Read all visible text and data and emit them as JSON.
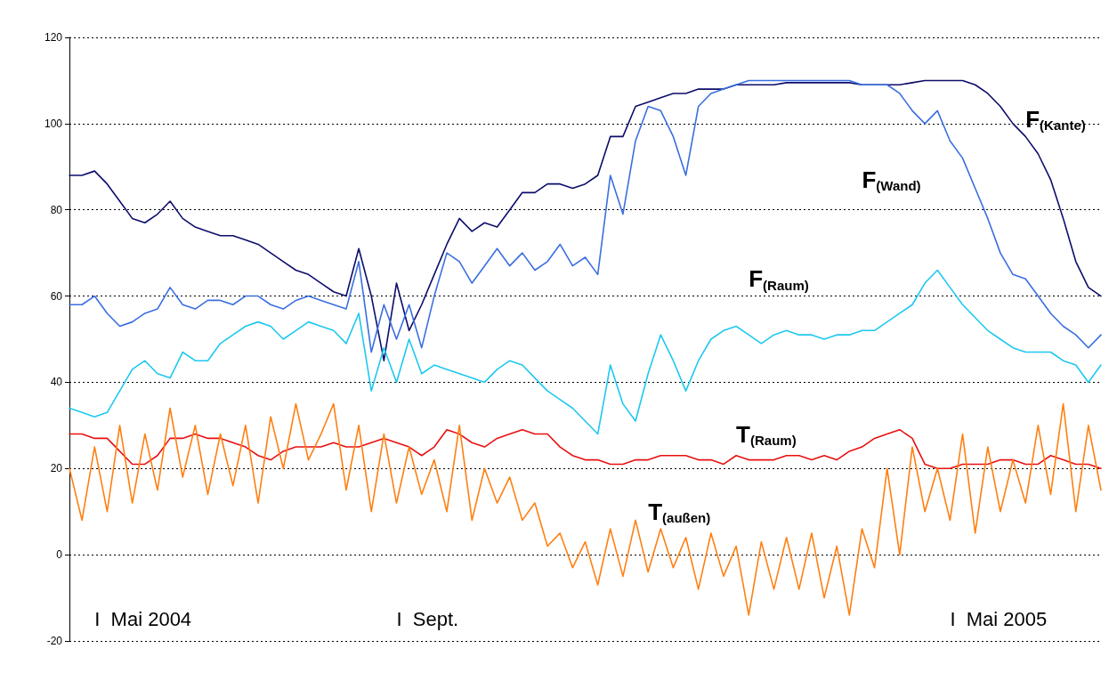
{
  "chart_data": {
    "type": "line",
    "marker": "none",
    "line_style": "solid",
    "legend": false,
    "grid": "y",
    "tick_labels": "y",
    "categories": [
      null,
      null,
      null,
      null,
      null,
      null,
      null,
      null,
      null,
      null,
      null,
      null,
      null,
      null,
      null,
      null,
      null,
      null,
      null,
      null,
      null,
      null,
      null,
      null,
      null,
      null,
      null,
      null,
      null,
      null,
      null,
      null,
      null,
      null,
      null,
      null,
      null,
      null,
      null,
      null,
      null,
      null,
      null,
      null,
      null,
      null,
      null,
      null,
      null,
      null,
      null,
      null,
      null,
      null,
      null,
      null,
      null,
      null,
      null,
      null,
      null,
      null,
      null,
      null,
      null,
      null,
      null,
      null,
      null,
      null,
      null,
      null,
      null,
      null,
      null,
      null,
      null,
      null,
      null,
      null,
      null,
      null,
      null
    ],
    "ylim": [
      -20,
      120
    ],
    "yticks": [
      -20,
      0,
      20,
      40,
      60,
      80,
      100,
      120
    ],
    "annotations": [
      "I  Mai 2004",
      "I  Sept.",
      "I  Mai 2005"
    ],
    "series": [
      {
        "name": "F$_{(Kante)}$",
        "color": "#0d0d6b",
        "values": [
          88,
          88,
          89,
          86,
          82,
          78,
          77,
          79,
          82,
          78,
          76,
          75,
          74,
          74,
          73,
          72,
          70,
          68,
          66,
          65,
          63,
          61,
          60,
          71,
          60,
          45,
          63,
          52,
          58,
          65,
          72,
          78,
          75,
          77,
          76,
          80,
          84,
          84,
          86,
          86,
          85,
          86,
          88,
          97,
          97,
          104,
          105,
          106,
          107,
          107,
          108,
          108,
          108,
          109,
          109,
          109,
          109,
          109.5,
          109.5,
          109.5,
          109.5,
          109.5,
          109.5,
          109,
          109,
          109,
          109,
          109.5,
          110,
          110,
          110,
          110,
          109,
          107,
          104,
          100,
          97,
          93,
          87,
          78,
          68,
          62,
          60
        ]
      },
      {
        "name": "F$_{(Wand)}$",
        "color": "#3a6fe0",
        "values": [
          58,
          58,
          60,
          56,
          53,
          54,
          56,
          57,
          62,
          58,
          57,
          59,
          59,
          58,
          60,
          60,
          58,
          57,
          59,
          60,
          59,
          58,
          57,
          68,
          47,
          58,
          50,
          58,
          48,
          60,
          70,
          68,
          63,
          67,
          71,
          67,
          70,
          66,
          68,
          72,
          67,
          69,
          65,
          88,
          79,
          96,
          104,
          103,
          97,
          88,
          104,
          107,
          108,
          109,
          110,
          110,
          110,
          110,
          110,
          110,
          110,
          110,
          110,
          109,
          109,
          109,
          107,
          103,
          100,
          103,
          96,
          92,
          85,
          78,
          70,
          65,
          64,
          60,
          56,
          53,
          51,
          48,
          51
        ]
      },
      {
        "name": "F$_{(Raum)}$",
        "color": "#1ec8f0",
        "values": [
          34,
          33,
          32,
          33,
          38,
          43,
          45,
          42,
          41,
          47,
          45,
          45,
          49,
          51,
          53,
          54,
          53,
          50,
          52,
          54,
          53,
          52,
          49,
          56,
          38,
          48,
          40,
          50,
          42,
          44,
          43,
          42,
          41,
          40,
          43,
          45,
          44,
          41,
          38,
          36,
          34,
          31,
          28,
          44,
          35,
          31,
          42,
          51,
          45,
          38,
          45,
          50,
          52,
          53,
          51,
          49,
          51,
          52,
          51,
          51,
          50,
          51,
          51,
          52,
          52,
          54,
          56,
          58,
          63,
          66,
          62,
          58,
          55,
          52,
          50,
          48,
          47,
          47,
          47,
          45,
          44,
          40,
          44
        ]
      },
      {
        "name": "T$_{(Raum)}$",
        "color": "#e81010",
        "values": [
          28,
          28,
          27,
          27,
          24,
          21,
          21,
          23,
          27,
          27,
          28,
          27,
          27,
          26,
          25,
          23,
          22,
          24,
          25,
          25,
          25,
          26,
          25,
          25,
          26,
          27,
          26,
          25,
          23,
          25,
          29,
          28,
          26,
          25,
          27,
          28,
          29,
          28,
          28,
          25,
          23,
          22,
          22,
          21,
          21,
          22,
          22,
          23,
          23,
          23,
          22,
          22,
          21,
          23,
          22,
          22,
          22,
          23,
          23,
          22,
          23,
          22,
          24,
          25,
          27,
          28,
          29,
          27,
          21,
          20,
          20,
          21,
          21,
          21,
          22,
          22,
          21,
          21,
          23,
          22,
          21,
          21,
          20
        ]
      },
      {
        "name": "T$_{(außen)}$",
        "color": "#ff7f10",
        "values": [
          20,
          8,
          25,
          10,
          30,
          12,
          28,
          15,
          34,
          18,
          30,
          14,
          28,
          16,
          30,
          12,
          32,
          20,
          35,
          22,
          28,
          35,
          15,
          30,
          10,
          28,
          12,
          25,
          14,
          22,
          10,
          30,
          8,
          20,
          12,
          18,
          8,
          12,
          2,
          5,
          -3,
          3,
          -7,
          6,
          -5,
          8,
          -4,
          6,
          -3,
          4,
          -8,
          5,
          -5,
          2,
          -14,
          3,
          -8,
          4,
          -8,
          5,
          -10,
          2,
          -14,
          6,
          -3,
          20,
          0,
          25,
          10,
          20,
          8,
          28,
          5,
          25,
          10,
          22,
          12,
          30,
          14,
          35,
          10,
          30,
          15
        ]
      }
    ]
  }
}
